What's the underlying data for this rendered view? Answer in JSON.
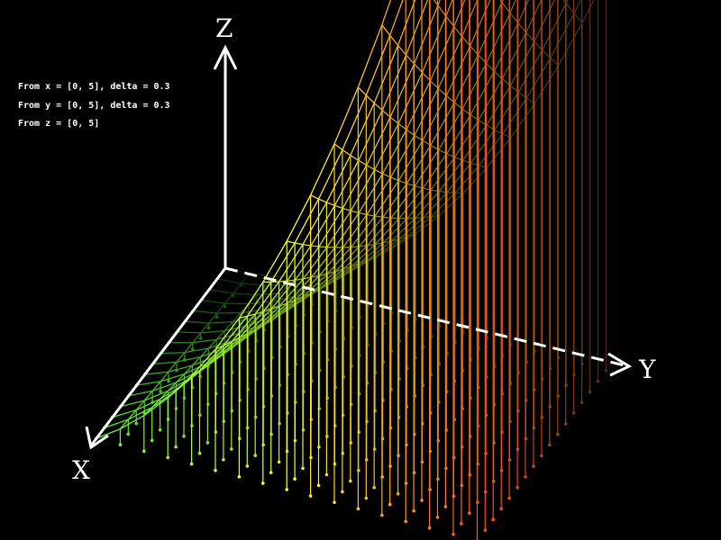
{
  "info_lines": [
    "From x = [0, 5], delta = 0.3",
    "From y = [0, 5], delta = 0.3",
    "From z = [0, 5]"
  ],
  "chart_data": {
    "type": "surface",
    "x_range": [
      0,
      5
    ],
    "y_range": [
      0,
      5
    ],
    "z_range": [
      0,
      5
    ],
    "delta": 0.3,
    "axis_labels": {
      "x": "X",
      "y": "Y",
      "z": "Z"
    },
    "style": {
      "background": "#000000",
      "axis_color": "#ffffff",
      "low_z_color": "#33ff33",
      "mid_z_color": "#ffff33",
      "high_z_color": "#ff3311",
      "grid_lines": true,
      "drop_lines_to_floor": true
    }
  }
}
